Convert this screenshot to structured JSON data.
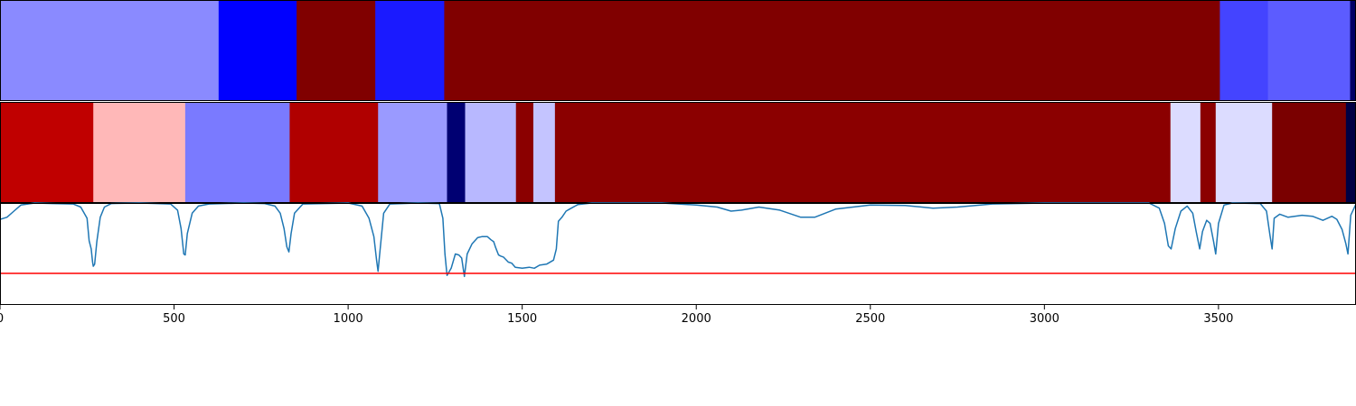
{
  "chart_data": [
    {
      "type": "heatmap",
      "segments": [
        {
          "start": 0,
          "end": 628,
          "color": "#8a8aff"
        },
        {
          "start": 628,
          "end": 852,
          "color": "#0000ff"
        },
        {
          "start": 852,
          "end": 1078,
          "color": "#800000"
        },
        {
          "start": 1078,
          "end": 1276,
          "color": "#1a1aff"
        },
        {
          "start": 1276,
          "end": 3504,
          "color": "#800000"
        },
        {
          "start": 3504,
          "end": 3642,
          "color": "#4444ff"
        },
        {
          "start": 3642,
          "end": 3878,
          "color": "#5c5cff"
        },
        {
          "start": 3878,
          "end": 3895,
          "color": "#000066"
        }
      ]
    },
    {
      "type": "heatmap",
      "segments": [
        {
          "start": 0,
          "end": 268,
          "color": "#c00000"
        },
        {
          "start": 268,
          "end": 532,
          "color": "#ffb8b8"
        },
        {
          "start": 532,
          "end": 832,
          "color": "#7a7aff"
        },
        {
          "start": 832,
          "end": 1086,
          "color": "#b00000"
        },
        {
          "start": 1086,
          "end": 1284,
          "color": "#9a9aff"
        },
        {
          "start": 1284,
          "end": 1336,
          "color": "#000072"
        },
        {
          "start": 1336,
          "end": 1482,
          "color": "#b8b8ff"
        },
        {
          "start": 1482,
          "end": 1532,
          "color": "#8b0000"
        },
        {
          "start": 1532,
          "end": 1594,
          "color": "#c4c4ff"
        },
        {
          "start": 1594,
          "end": 3362,
          "color": "#8b0000"
        },
        {
          "start": 3362,
          "end": 3448,
          "color": "#dcdcff"
        },
        {
          "start": 3448,
          "end": 3492,
          "color": "#8b0000"
        },
        {
          "start": 3492,
          "end": 3654,
          "color": "#dcdcff"
        },
        {
          "start": 3654,
          "end": 3866,
          "color": "#7a0000"
        },
        {
          "start": 3866,
          "end": 3895,
          "color": "#000044"
        }
      ]
    },
    {
      "type": "line",
      "xlim": [
        0,
        3895
      ],
      "ylim": [
        0,
        1
      ],
      "xticks": [
        "0",
        "500",
        "1000",
        "1500",
        "2000",
        "2500",
        "3000",
        "3500"
      ],
      "xtick_values": [
        0,
        500,
        1000,
        1500,
        2000,
        2500,
        3000,
        3500
      ],
      "threshold": 0.31,
      "series": [
        {
          "color": "#1f77b4",
          "points": [
            [
              0,
              0.84
            ],
            [
              20,
              0.86
            ],
            [
              40,
              0.92
            ],
            [
              60,
              0.98
            ],
            [
              100,
              1.0
            ],
            [
              150,
              0.995
            ],
            [
              210,
              0.99
            ],
            [
              232,
              0.96
            ],
            [
              250,
              0.85
            ],
            [
              256,
              0.63
            ],
            [
              262,
              0.55
            ],
            [
              266,
              0.42
            ],
            [
              268,
              0.38
            ],
            [
              272,
              0.4
            ],
            [
              278,
              0.62
            ],
            [
              288,
              0.86
            ],
            [
              300,
              0.96
            ],
            [
              320,
              0.995
            ],
            [
              400,
              1.0
            ],
            [
              490,
              0.99
            ],
            [
              510,
              0.93
            ],
            [
              520,
              0.75
            ],
            [
              528,
              0.5
            ],
            [
              532,
              0.49
            ],
            [
              538,
              0.7
            ],
            [
              552,
              0.9
            ],
            [
              570,
              0.97
            ],
            [
              600,
              0.99
            ],
            [
              700,
              1.0
            ],
            [
              760,
              0.995
            ],
            [
              790,
              0.97
            ],
            [
              805,
              0.9
            ],
            [
              816,
              0.75
            ],
            [
              824,
              0.57
            ],
            [
              830,
              0.52
            ],
            [
              836,
              0.7
            ],
            [
              846,
              0.9
            ],
            [
              870,
              0.99
            ],
            [
              1000,
              1.0
            ],
            [
              1040,
              0.97
            ],
            [
              1060,
              0.85
            ],
            [
              1074,
              0.67
            ],
            [
              1082,
              0.43
            ],
            [
              1086,
              0.33
            ],
            [
              1090,
              0.48
            ],
            [
              1102,
              0.9
            ],
            [
              1120,
              0.99
            ],
            [
              1200,
              1.0
            ],
            [
              1262,
              0.995
            ],
            [
              1272,
              0.85
            ],
            [
              1278,
              0.5
            ],
            [
              1284,
              0.29
            ],
            [
              1296,
              0.36
            ],
            [
              1308,
              0.5
            ],
            [
              1318,
              0.49
            ],
            [
              1326,
              0.46
            ],
            [
              1334,
              0.28
            ],
            [
              1342,
              0.5
            ],
            [
              1356,
              0.6
            ],
            [
              1372,
              0.66
            ],
            [
              1384,
              0.67
            ],
            [
              1400,
              0.67
            ],
            [
              1410,
              0.64
            ],
            [
              1418,
              0.62
            ],
            [
              1424,
              0.56
            ],
            [
              1432,
              0.49
            ],
            [
              1438,
              0.48
            ],
            [
              1446,
              0.47
            ],
            [
              1460,
              0.42
            ],
            [
              1470,
              0.41
            ],
            [
              1480,
              0.37
            ],
            [
              1500,
              0.36
            ],
            [
              1520,
              0.37
            ],
            [
              1535,
              0.36
            ],
            [
              1550,
              0.39
            ],
            [
              1570,
              0.4
            ],
            [
              1590,
              0.44
            ],
            [
              1598,
              0.55
            ],
            [
              1604,
              0.82
            ],
            [
              1614,
              0.86
            ],
            [
              1626,
              0.92
            ],
            [
              1636,
              0.94
            ],
            [
              1660,
              0.985
            ],
            [
              1700,
              1.0
            ],
            [
              1900,
              1.0
            ],
            [
              2000,
              0.98
            ],
            [
              2060,
              0.96
            ],
            [
              2100,
              0.92
            ],
            [
              2130,
              0.93
            ],
            [
              2180,
              0.96
            ],
            [
              2240,
              0.93
            ],
            [
              2300,
              0.86
            ],
            [
              2340,
              0.86
            ],
            [
              2400,
              0.94
            ],
            [
              2500,
              0.98
            ],
            [
              2600,
              0.975
            ],
            [
              2680,
              0.95
            ],
            [
              2750,
              0.96
            ],
            [
              2850,
              0.99
            ],
            [
              3000,
              1.0
            ],
            [
              3300,
              1.0
            ],
            [
              3330,
              0.95
            ],
            [
              3345,
              0.8
            ],
            [
              3356,
              0.58
            ],
            [
              3364,
              0.55
            ],
            [
              3376,
              0.75
            ],
            [
              3392,
              0.92
            ],
            [
              3410,
              0.97
            ],
            [
              3426,
              0.9
            ],
            [
              3436,
              0.72
            ],
            [
              3446,
              0.55
            ],
            [
              3454,
              0.72
            ],
            [
              3466,
              0.83
            ],
            [
              3476,
              0.8
            ],
            [
              3486,
              0.62
            ],
            [
              3492,
              0.5
            ],
            [
              3500,
              0.8
            ],
            [
              3516,
              0.98
            ],
            [
              3540,
              1.0
            ],
            [
              3620,
              0.995
            ],
            [
              3638,
              0.92
            ],
            [
              3648,
              0.68
            ],
            [
              3654,
              0.55
            ],
            [
              3660,
              0.85
            ],
            [
              3676,
              0.89
            ],
            [
              3700,
              0.86
            ],
            [
              3740,
              0.88
            ],
            [
              3770,
              0.87
            ],
            [
              3800,
              0.83
            ],
            [
              3826,
              0.87
            ],
            [
              3840,
              0.84
            ],
            [
              3855,
              0.74
            ],
            [
              3866,
              0.6
            ],
            [
              3872,
              0.5
            ],
            [
              3880,
              0.88
            ],
            [
              3895,
              0.99
            ]
          ]
        }
      ]
    }
  ]
}
